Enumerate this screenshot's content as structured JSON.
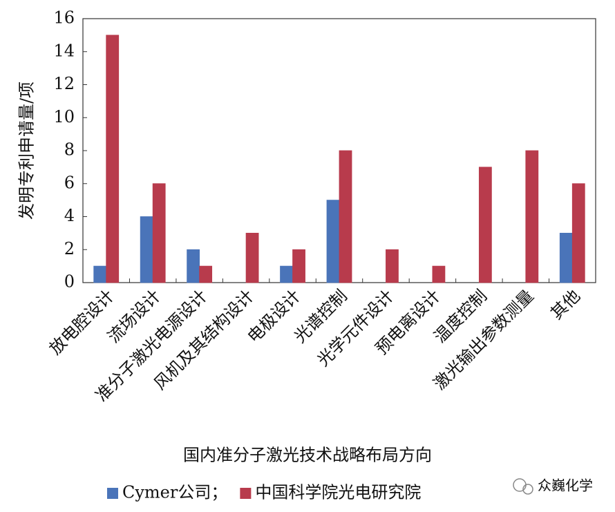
{
  "chart_data": {
    "type": "bar",
    "y_label": "发明专利申请量/项",
    "x_label": "国内准分子激光技术战略布局方向",
    "categories": [
      "放电腔设计",
      "流场设计",
      "准分子激光电源设计",
      "风机及其结构设计",
      "电极设计",
      "光谱控制",
      "光学元件设计",
      "预电离设计",
      "温度控制",
      "激光输出参数测量",
      "其他"
    ],
    "series": [
      {
        "name": "Cymer公司；",
        "color": "#4a74b9",
        "values": [
          1,
          4,
          2,
          0,
          1,
          5,
          0,
          0,
          0,
          0,
          3
        ]
      },
      {
        "name": "中国科学院光电研究院",
        "color": "#b83b4c",
        "values": [
          15,
          6,
          1,
          3,
          2,
          8,
          2,
          1,
          7,
          8,
          6
        ]
      }
    ],
    "ylim": [
      0,
      16
    ],
    "yticks": [
      0,
      2,
      4,
      6,
      8,
      10,
      12,
      14,
      16
    ],
    "grid": false,
    "legend": "bottom",
    "watermark": "众巍化学"
  }
}
